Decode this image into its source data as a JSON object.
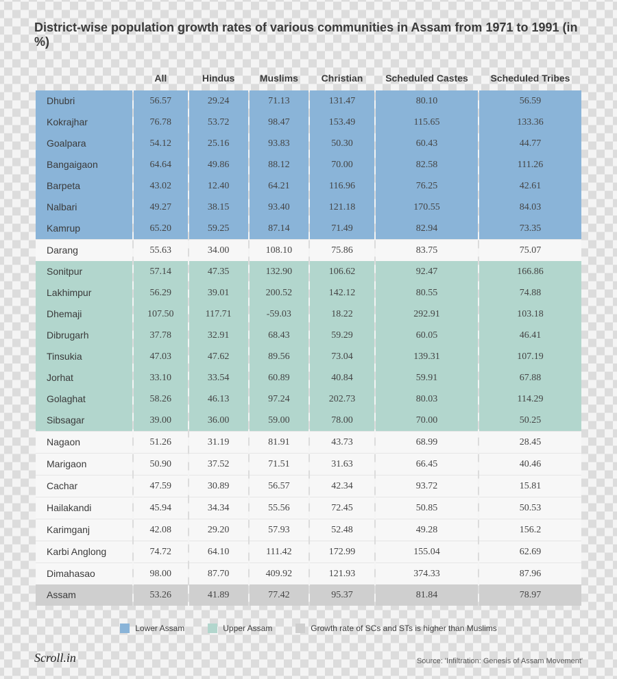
{
  "title": "District-wise population growth rates of various communities in Assam from 1971 to 1991 (in %)",
  "columns": [
    "",
    "All",
    "Hindus",
    "Muslims",
    "Christian",
    "Scheduled Castes",
    "Scheduled Tribes"
  ],
  "col_widths": [
    "18%",
    "10%",
    "11%",
    "11%",
    "12%",
    "19%",
    "19%"
  ],
  "colors": {
    "lower": "#8ab4d8",
    "upper": "#b2d6cd",
    "none": "#f7f7f7",
    "summary": "#cfcfcf",
    "title": "#3a3a3a",
    "text": "#444444"
  },
  "typography": {
    "title_font": "Helvetica Neue",
    "title_fontsize": 18,
    "title_weight": 700,
    "header_fontsize": 14,
    "cell_fontsize": 14,
    "body_font": "Georgia"
  },
  "rows": [
    {
      "district": "Dhubri",
      "region": "lower",
      "values": [
        "56.57",
        "29.24",
        "71.13",
        "131.47",
        "80.10",
        "56.59"
      ]
    },
    {
      "district": "Kokrajhar",
      "region": "lower",
      "values": [
        "76.78",
        "53.72",
        "98.47",
        "153.49",
        "115.65",
        "133.36"
      ]
    },
    {
      "district": "Goalpara",
      "region": "lower",
      "values": [
        "54.12",
        "25.16",
        "93.83",
        "50.30",
        "60.43",
        "44.77"
      ]
    },
    {
      "district": "Bangaigaon",
      "region": "lower",
      "values": [
        "64.64",
        "49.86",
        "88.12",
        "70.00",
        "82.58",
        "111.26"
      ]
    },
    {
      "district": "Barpeta",
      "region": "lower",
      "values": [
        "43.02",
        "12.40",
        "64.21",
        "116.96",
        "76.25",
        "42.61"
      ]
    },
    {
      "district": "Nalbari",
      "region": "lower",
      "values": [
        "49.27",
        "38.15",
        "93.40",
        "121.18",
        "170.55",
        "84.03"
      ]
    },
    {
      "district": "Kamrup",
      "region": "lower",
      "values": [
        "65.20",
        "59.25",
        "87.14",
        "71.49",
        "82.94",
        "73.35"
      ]
    },
    {
      "district": "Darang",
      "region": "none",
      "values": [
        "55.63",
        "34.00",
        "108.10",
        "75.86",
        "83.75",
        "75.07"
      ]
    },
    {
      "district": "Sonitpur",
      "region": "upper",
      "values": [
        "57.14",
        "47.35",
        "132.90",
        "106.62",
        "92.47",
        "166.86"
      ]
    },
    {
      "district": "Lakhimpur",
      "region": "upper",
      "values": [
        "56.29",
        "39.01",
        "200.52",
        "142.12",
        "80.55",
        "74.88"
      ]
    },
    {
      "district": "Dhemaji",
      "region": "upper",
      "values": [
        "107.50",
        "117.71",
        "-59.03",
        "18.22",
        "292.91",
        "103.18"
      ]
    },
    {
      "district": "Dibrugarh",
      "region": "upper",
      "values": [
        "37.78",
        "32.91",
        "68.43",
        "59.29",
        "60.05",
        "46.41"
      ]
    },
    {
      "district": "Tinsukia",
      "region": "upper",
      "values": [
        "47.03",
        "47.62",
        "89.56",
        "73.04",
        "139.31",
        "107.19"
      ]
    },
    {
      "district": "Jorhat",
      "region": "upper",
      "values": [
        "33.10",
        "33.54",
        "60.89",
        "40.84",
        "59.91",
        "67.88"
      ]
    },
    {
      "district": "Golaghat",
      "region": "upper",
      "values": [
        "58.26",
        "46.13",
        "97.24",
        "202.73",
        "80.03",
        "114.29"
      ]
    },
    {
      "district": "Sibsagar",
      "region": "upper",
      "values": [
        "39.00",
        "36.00",
        "59.00",
        "78.00",
        "70.00",
        "50.25"
      ]
    },
    {
      "district": "Nagaon",
      "region": "none",
      "values": [
        "51.26",
        "31.19",
        "81.91",
        "43.73",
        "68.99",
        "28.45"
      ]
    },
    {
      "district": "Marigaon",
      "region": "none",
      "values": [
        "50.90",
        "37.52",
        "71.51",
        "31.63",
        "66.45",
        "40.46"
      ]
    },
    {
      "district": "Cachar",
      "region": "none",
      "values": [
        "47.59",
        "30.89",
        "56.57",
        "42.34",
        "93.72",
        "15.81"
      ]
    },
    {
      "district": "Hailakandi",
      "region": "none",
      "values": [
        "45.94",
        "34.34",
        "55.56",
        "72.45",
        "50.85",
        "50.53"
      ]
    },
    {
      "district": "Karimganj",
      "region": "none",
      "values": [
        "42.08",
        "29.20",
        "57.93",
        "52.48",
        "49.28",
        "156.2"
      ]
    },
    {
      "district": "Karbi Anglong",
      "region": "none",
      "values": [
        "74.72",
        "64.10",
        "111.42",
        "172.99",
        "155.04",
        "62.69"
      ]
    },
    {
      "district": "Dimahasao",
      "region": "none",
      "values": [
        "98.00",
        "87.70",
        "409.92",
        "121.93",
        "374.33",
        "87.96"
      ]
    }
  ],
  "summary": {
    "district": "Assam",
    "values": [
      "53.26",
      "41.89",
      "77.42",
      "95.37",
      "81.84",
      "78.97"
    ]
  },
  "legend": {
    "lower": "Lower Assam",
    "upper": "Upper Assam",
    "note": "Growth rate of SCs and STs is higher than Muslims"
  },
  "brand": "Scroll.in",
  "source": "Source: 'Infiltration: Genesis of Assam Movement'"
}
